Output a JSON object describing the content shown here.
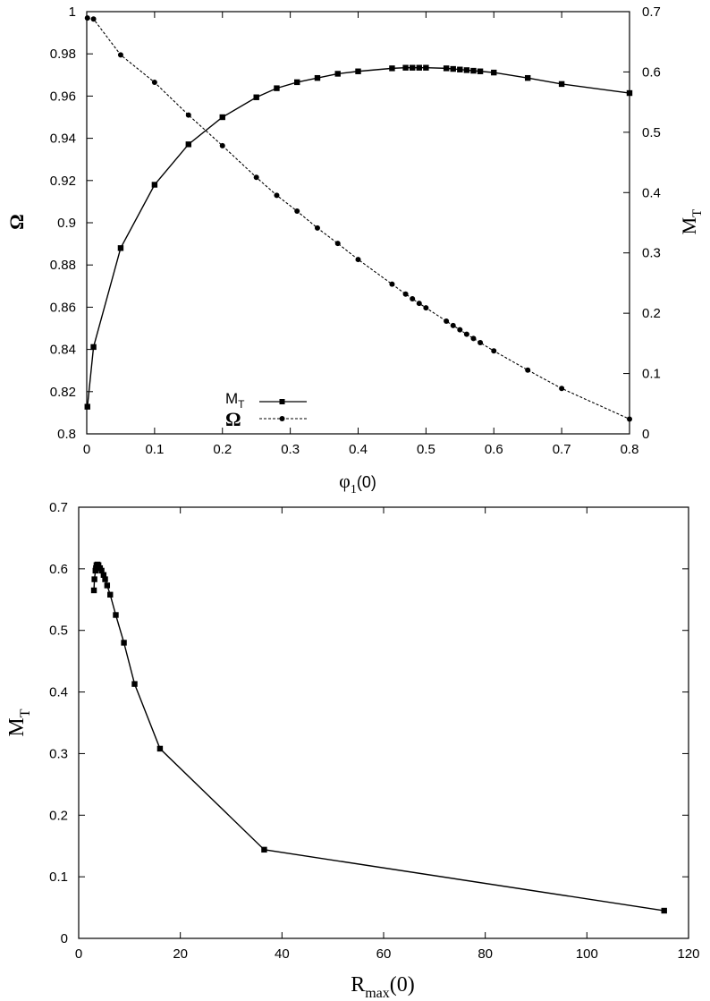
{
  "chart_data": [
    {
      "type": "line",
      "x_label_main": "φ",
      "x_label_sub": "1",
      "x_label_tail": "(0)",
      "y_left_label": "Ω",
      "y_right_label_main": "M",
      "y_right_label_sub": "T",
      "xlim": [
        0,
        0.8
      ],
      "ylim_left": [
        0.8,
        1.0
      ],
      "ylim_right": [
        0,
        0.7
      ],
      "x_ticks": [
        "0",
        "0.1",
        "0.2",
        "0.3",
        "0.4",
        "0.5",
        "0.6",
        "0.7",
        "0.8"
      ],
      "y_left_ticks": [
        "0.8",
        "0.82",
        "0.84",
        "0.86",
        "0.88",
        "0.9",
        "0.92",
        "0.94",
        "0.96",
        "0.98",
        "1"
      ],
      "y_right_ticks": [
        "0",
        "0.1",
        "0.2",
        "0.3",
        "0.4",
        "0.5",
        "0.6",
        "0.7"
      ],
      "grid": false,
      "legend_position": "bottom-center",
      "series": [
        {
          "name": "M",
          "name_sub": "T",
          "axis": "right",
          "marker": "square",
          "line": "solid",
          "x": [
            0.001,
            0.01,
            0.05,
            0.1,
            0.15,
            0.2,
            0.25,
            0.28,
            0.31,
            0.34,
            0.37,
            0.4,
            0.45,
            0.47,
            0.48,
            0.49,
            0.5,
            0.53,
            0.54,
            0.55,
            0.56,
            0.57,
            0.58,
            0.6,
            0.65,
            0.7,
            0.8
          ],
          "y": [
            0.045,
            0.144,
            0.308,
            0.413,
            0.48,
            0.525,
            0.558,
            0.573,
            0.583,
            0.59,
            0.597,
            0.601,
            0.606,
            0.607,
            0.607,
            0.607,
            0.607,
            0.606,
            0.605,
            0.604,
            0.603,
            0.602,
            0.601,
            0.599,
            0.59,
            0.58,
            0.565
          ]
        },
        {
          "name": "Ω",
          "axis": "left",
          "marker": "circle",
          "line": "dashed",
          "x": [
            0.001,
            0.01,
            0.05,
            0.1,
            0.15,
            0.2,
            0.25,
            0.28,
            0.31,
            0.34,
            0.37,
            0.4,
            0.45,
            0.47,
            0.48,
            0.49,
            0.5,
            0.53,
            0.54,
            0.55,
            0.56,
            0.57,
            0.58,
            0.6,
            0.65,
            0.7,
            0.8
          ],
          "y": [
            0.997,
            0.9965,
            0.9795,
            0.9665,
            0.951,
            0.9365,
            0.9215,
            0.913,
            0.9055,
            0.8975,
            0.8902,
            0.8826,
            0.8709,
            0.8662,
            0.864,
            0.8618,
            0.8597,
            0.8534,
            0.8513,
            0.8493,
            0.8472,
            0.8452,
            0.8432,
            0.8393,
            0.8302,
            0.8215,
            0.807
          ]
        }
      ]
    },
    {
      "type": "line",
      "x_label_main": "R",
      "x_label_sub": "max",
      "x_label_tail": "(0)",
      "y_label_main": "M",
      "y_label_sub": "T",
      "xlim": [
        0,
        120
      ],
      "ylim": [
        0,
        0.7
      ],
      "x_ticks": [
        "0",
        "20",
        "40",
        "60",
        "80",
        "100",
        "120"
      ],
      "y_ticks": [
        "0",
        "0.1",
        "0.2",
        "0.3",
        "0.4",
        "0.5",
        "0.6",
        "0.7"
      ],
      "grid": false,
      "series": [
        {
          "marker": "square",
          "line": "solid",
          "x": [
            115.2,
            36.5,
            16.0,
            11.0,
            8.9,
            7.3,
            6.2,
            5.6,
            5.2,
            4.9,
            4.5,
            4.2,
            3.9,
            3.7,
            3.5,
            3.4,
            3.3,
            3.1,
            3.0
          ],
          "y": [
            0.045,
            0.144,
            0.308,
            0.413,
            0.48,
            0.525,
            0.558,
            0.573,
            0.583,
            0.59,
            0.597,
            0.601,
            0.606,
            0.607,
            0.606,
            0.601,
            0.597,
            0.583,
            0.565
          ]
        }
      ]
    }
  ]
}
